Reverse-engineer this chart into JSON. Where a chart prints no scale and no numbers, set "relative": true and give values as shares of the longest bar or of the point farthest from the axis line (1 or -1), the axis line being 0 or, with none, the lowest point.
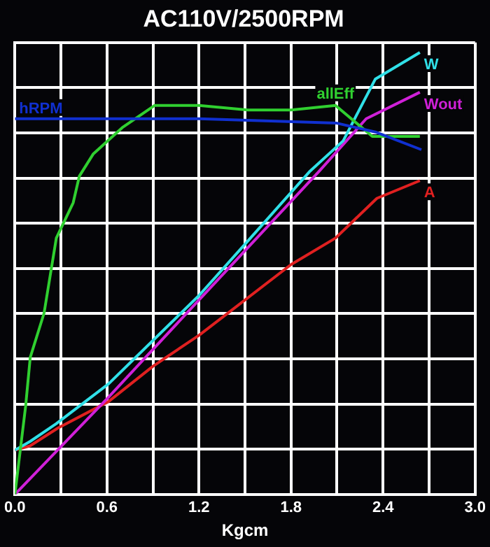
{
  "chart_data": {
    "type": "line",
    "title": "AC110V/2500RPM",
    "xlabel": "Kgcm",
    "relative": true,
    "grid": true,
    "legend": false,
    "marker": "none",
    "line_style": "solid",
    "xlim": [
      0,
      3
    ],
    "xticks": [
      {
        "value": 0,
        "label": "0.0"
      },
      {
        "value": 0.3,
        "label": null
      },
      0.6,
      {
        "value": 0.9,
        "label": null
      },
      1.2,
      {
        "value": 1.5,
        "label": null
      },
      1.8,
      {
        "value": 2.1,
        "label": null
      },
      2.4,
      {
        "value": 2.7,
        "label": null
      },
      {
        "value": 3,
        "label": "3.0"
      }
    ],
    "series": [
      {
        "name": "hRPM",
        "color": "#1030d0",
        "x": [
          0,
          1.2,
          2.1,
          2.35,
          2.65
        ],
        "values": [
          0.85,
          0.85,
          0.84,
          0.82,
          0.78
        ]
      },
      {
        "name": "allEff",
        "color": "#30d030",
        "x": [
          0,
          0.07,
          0.1,
          0.19,
          0.27,
          0.38,
          0.42,
          0.51,
          0.7,
          0.91,
          1.2,
          1.52,
          1.8,
          2.09,
          2.33,
          2.64
        ],
        "values": [
          0,
          0.2,
          0.31,
          0.41,
          0.58,
          0.66,
          0.72,
          0.77,
          0.83,
          0.88,
          0.88,
          0.87,
          0.87,
          0.88,
          0.81,
          0.81
        ]
      },
      {
        "name": "W",
        "color": "#30e0e8",
        "x": [
          0,
          0.1,
          0.27,
          0.61,
          1.2,
          1.51,
          1.92,
          2.14,
          2.35,
          2.64
        ],
        "values": [
          0.1,
          0.12,
          0.16,
          0.25,
          0.45,
          0.57,
          0.73,
          0.8,
          0.94,
          1
        ]
      },
      {
        "name": "Wout",
        "color": "#d020d8",
        "x": [
          0,
          0.61,
          1.2,
          1.98,
          2.29,
          2.64
        ],
        "values": [
          0,
          0.22,
          0.44,
          0.73,
          0.85,
          0.91
        ]
      },
      {
        "name": "A",
        "color": "#e02020",
        "x": [
          0,
          0.1,
          0.28,
          0.61,
          0.9,
          1.2,
          1.8,
          2.09,
          2.36,
          2.64
        ],
        "values": [
          0.1,
          0.11,
          0.15,
          0.21,
          0.29,
          0.36,
          0.52,
          0.58,
          0.67,
          0.71
        ]
      }
    ]
  }
}
